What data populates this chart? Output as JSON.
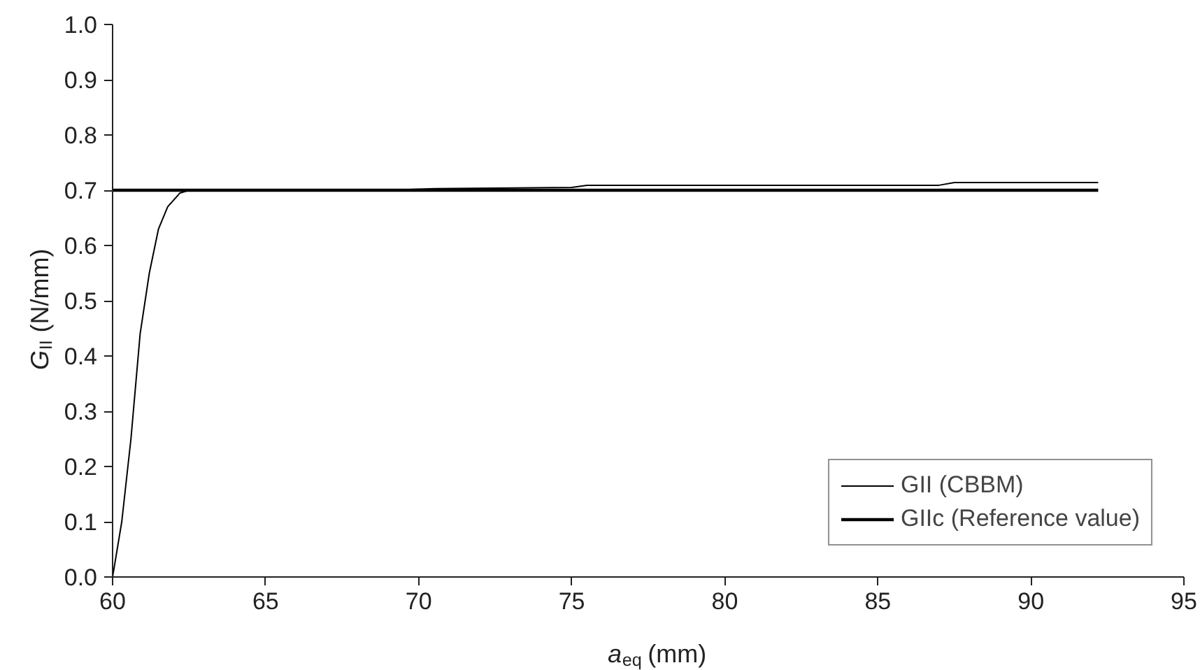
{
  "chart_data": {
    "type": "line",
    "xlabel": "a$_{eq}$ (mm)",
    "ylabel": "G$_{II}$ (N/mm)",
    "series": [
      {
        "name": "GII (CBBM)",
        "color": "#000000",
        "x": [
          60,
          60.3,
          60.6,
          60.9,
          61.2,
          61.5,
          61.8,
          62.2,
          62.5,
          69,
          70.5,
          75,
          75.5,
          87,
          87.5,
          92.2
        ],
        "values": [
          0,
          0.1,
          0.25,
          0.44,
          0.55,
          0.63,
          0.67,
          0.695,
          0.7,
          0.7,
          0.703,
          0.705,
          0.709,
          0.709,
          0.714,
          0.714
        ]
      },
      {
        "name": "GIIc (Reference value)",
        "color": "#000000",
        "x": [
          60,
          92.2
        ],
        "values": [
          0.7,
          0.7
        ]
      }
    ],
    "xlim": [
      60,
      95
    ],
    "xticks": [
      60,
      65,
      70,
      75,
      80,
      85,
      90,
      95
    ],
    "ylim": [
      0,
      1
    ],
    "yticks": [
      {
        "value": 0,
        "label": "0.0"
      },
      0.1,
      0.2,
      0.3,
      0.4,
      0.5,
      0.6,
      0.7,
      0.8,
      0.9,
      {
        "value": 1,
        "label": "1.0"
      }
    ],
    "grid": false,
    "legend": "bottom right",
    "marker": "none",
    "line_style": "solid"
  }
}
